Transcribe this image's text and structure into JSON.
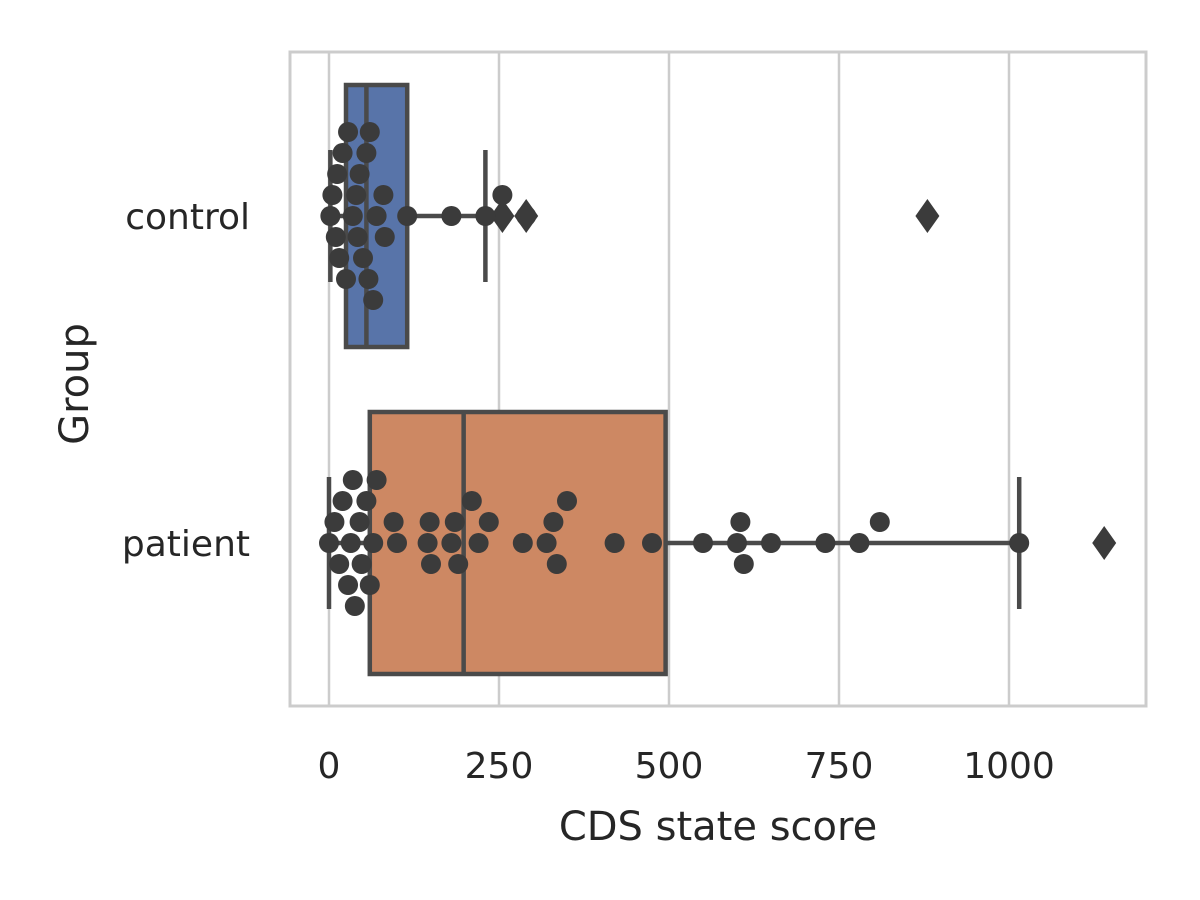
{
  "chart_data": {
    "type": "box",
    "xlabel": "CDS state score",
    "ylabel": "Group",
    "xlim": [
      -60,
      1200
    ],
    "xticks": [
      0,
      250,
      500,
      750,
      1000
    ],
    "grid": "vertical",
    "groups": [
      {
        "name": "control",
        "color": "#5874a9",
        "box": {
          "q1": 25,
          "median": 55,
          "q3": 115,
          "whisker_low": 2,
          "whisker_high": 230
        },
        "outliers": [
          255,
          290,
          880
        ],
        "points": [
          2,
          5,
          10,
          12,
          15,
          20,
          25,
          28,
          35,
          40,
          42,
          45,
          50,
          55,
          58,
          60,
          65,
          70,
          80,
          82,
          115,
          180,
          230,
          255,
          290
        ]
      },
      {
        "name": "patient",
        "color": "#cd8863",
        "box": {
          "q1": 60,
          "median": 198,
          "q3": 495,
          "whisker_low": 0,
          "whisker_high": 1015
        },
        "outliers": [
          1140
        ],
        "points": [
          0,
          8,
          15,
          20,
          28,
          32,
          35,
          38,
          45,
          48,
          55,
          60,
          65,
          70,
          95,
          100,
          145,
          148,
          150,
          180,
          185,
          190,
          210,
          220,
          235,
          285,
          320,
          330,
          335,
          350,
          420,
          475,
          550,
          600,
          605,
          610,
          650,
          730,
          780,
          810,
          1015
        ]
      }
    ]
  }
}
